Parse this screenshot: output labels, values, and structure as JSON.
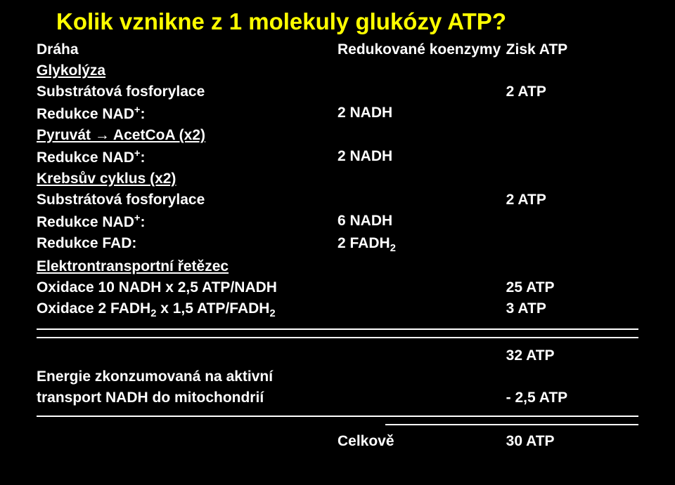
{
  "title": "Kolik vznikne z 1 molekuly glukózy ATP?",
  "headers": {
    "c1": "Dráha",
    "c2": "Redukované koenzymy",
    "c3": "Zisk ATP"
  },
  "sections": {
    "glykolyza": "Glykolýza",
    "krebs": "Krebsův cyklus (x2)",
    "etc": "Elektrontransportní řetězec"
  },
  "rows": {
    "subfos1_c1": "Substrátová fosforylace",
    "subfos1_c3": "2 ATP",
    "rednad1_c1_pre": "Redukce NAD",
    "rednad1_c1_post": ":",
    "rednad1_c2": "2 NADH",
    "pyruvat_c1": "Pyruvát → AcetCoA (x2)",
    "rednad2_c1_pre": "Redukce NAD",
    "rednad2_c1_post": ":",
    "rednad2_c2": "2 NADH",
    "subfos2_c1": "Substrátová fosforylace",
    "subfos2_c3": "2 ATP",
    "rednad3_c1_pre": "Redukce NAD",
    "rednad3_c1_post": ":",
    "rednad3_c2": "6 NADH",
    "redfad_c1": "Redukce FAD:",
    "redfad_c2_pre": "2 FADH",
    "oxnadh_c1": "Oxidace 10 NADH x 2,5 ATP/NADH",
    "oxnadh_c3": "25 ATP",
    "oxfadh_c1_pre": "Oxidace 2 FADH",
    "oxfadh_c1_mid": " x 1,5 ATP/FADH",
    "oxfadh_c3": "3 ATP"
  },
  "summary": {
    "subtotal": "32 ATP",
    "energy_line1": "Energie zkonzumovaná na aktivní",
    "energy_line2": "transport NADH do mitochondrií",
    "energy_val": "- 2,5 ATP"
  },
  "total": {
    "label": "Celkově",
    "value": "30 ATP"
  },
  "colors": {
    "background": "#000000",
    "text": "#ffffff",
    "title": "#ffff00",
    "rule": "#ffffff"
  }
}
